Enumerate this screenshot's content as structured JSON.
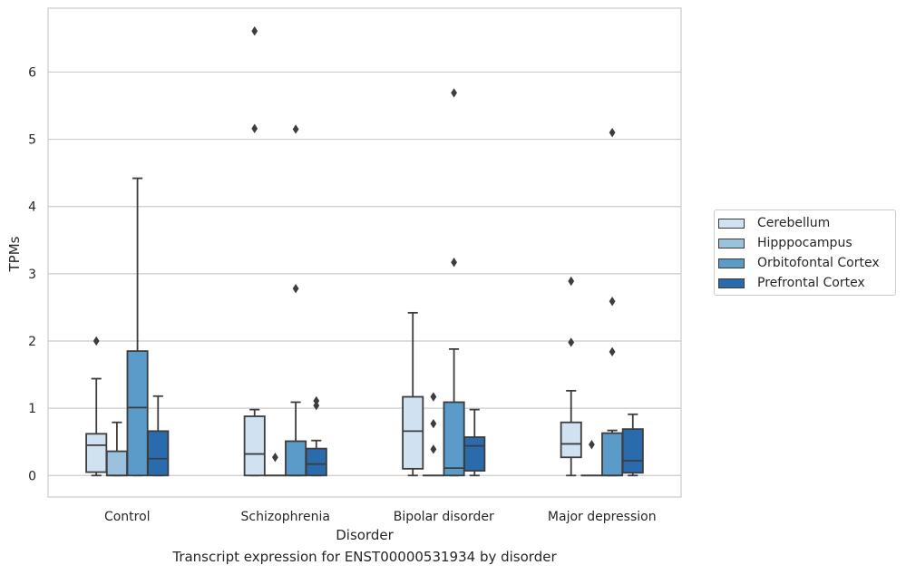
{
  "chart_data": {
    "type": "box",
    "title": "Transcript expression for ENST00000531934 by disorder",
    "xlabel": "Disorder",
    "ylabel": "TPMs",
    "ylim": [
      -0.32,
      6.95
    ],
    "yticks": [
      0,
      1,
      2,
      3,
      4,
      5,
      6
    ],
    "grid": "horizontal",
    "legend_position": "right",
    "categories": [
      "Control",
      "Schizophrenia",
      "Bipolar disorder",
      "Major depression"
    ],
    "series": [
      {
        "name": "Cerebellum",
        "color": "#d0e1f2",
        "boxes": [
          {
            "whislo": 0.0,
            "q1": 0.05,
            "med": 0.45,
            "q3": 0.62,
            "whishi": 1.44,
            "fliers": [
              2.0
            ]
          },
          {
            "whislo": 0.0,
            "q1": 0.0,
            "med": 0.32,
            "q3": 0.88,
            "whishi": 0.98,
            "fliers": [
              5.16,
              6.61
            ]
          },
          {
            "whislo": 0.0,
            "q1": 0.1,
            "med": 0.66,
            "q3": 1.17,
            "whishi": 2.42,
            "fliers": []
          },
          {
            "whislo": 0.0,
            "q1": 0.27,
            "med": 0.47,
            "q3": 0.79,
            "whishi": 1.26,
            "fliers": [
              1.98,
              2.89
            ]
          }
        ]
      },
      {
        "name": "Hipppocampus",
        "color": "#9ac1de",
        "boxes": [
          {
            "whislo": 0.0,
            "q1": 0.0,
            "med": 0.0,
            "q3": 0.36,
            "whishi": 0.79,
            "fliers": []
          },
          {
            "whislo": 0.0,
            "q1": 0.0,
            "med": 0.0,
            "q3": 0.0,
            "whishi": 0.0,
            "fliers": [
              0.27
            ]
          },
          {
            "whislo": 0.0,
            "q1": 0.0,
            "med": 0.0,
            "q3": 0.0,
            "whishi": 0.0,
            "fliers": [
              0.39,
              0.77,
              1.17
            ]
          },
          {
            "whislo": 0.0,
            "q1": 0.0,
            "med": 0.0,
            "q3": 0.0,
            "whishi": 0.0,
            "fliers": [
              0.46
            ]
          }
        ]
      },
      {
        "name": "Orbitofontal Cortex",
        "color": "#5a9bc9",
        "boxes": [
          {
            "whislo": 0.0,
            "q1": 0.0,
            "med": 1.01,
            "q3": 1.85,
            "whishi": 4.42,
            "fliers": []
          },
          {
            "whislo": 0.0,
            "q1": 0.0,
            "med": 0.0,
            "q3": 0.51,
            "whishi": 1.09,
            "fliers": [
              2.78,
              5.15
            ]
          },
          {
            "whislo": 0.0,
            "q1": 0.0,
            "med": 0.11,
            "q3": 1.09,
            "whishi": 1.88,
            "fliers": [
              3.17,
              5.69
            ]
          },
          {
            "whislo": 0.0,
            "q1": 0.0,
            "med": 0.0,
            "q3": 0.63,
            "whishi": 0.67,
            "fliers": [
              1.84,
              2.59,
              5.1
            ]
          }
        ]
      },
      {
        "name": "Prefrontal Cortex",
        "color": "#2a6bae",
        "boxes": [
          {
            "whislo": 0.0,
            "q1": 0.0,
            "med": 0.25,
            "q3": 0.66,
            "whishi": 1.18,
            "fliers": []
          },
          {
            "whislo": 0.0,
            "q1": 0.0,
            "med": 0.17,
            "q3": 0.4,
            "whishi": 0.52,
            "fliers": [
              1.04,
              1.11
            ]
          },
          {
            "whislo": 0.0,
            "q1": 0.07,
            "med": 0.44,
            "q3": 0.57,
            "whishi": 0.98,
            "fliers": []
          },
          {
            "whislo": 0.0,
            "q1": 0.04,
            "med": 0.22,
            "q3": 0.69,
            "whishi": 0.91,
            "fliers": []
          }
        ]
      }
    ]
  }
}
